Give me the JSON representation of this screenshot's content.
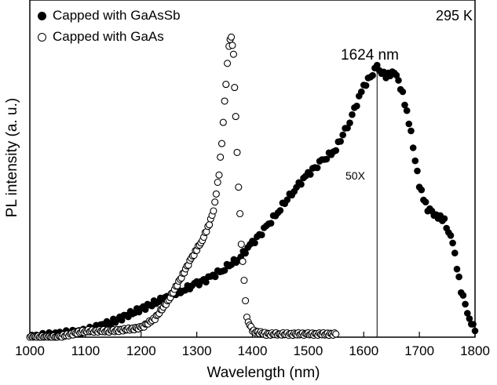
{
  "chart_data": {
    "type": "scatter",
    "title": "",
    "xlabel": "Wavelength (nm)",
    "ylabel": "PL intensity (a. u.)",
    "xlim": [
      1000,
      1800
    ],
    "ylim": [
      0,
      1
    ],
    "x_ticks": [
      1000,
      1100,
      1200,
      1300,
      1400,
      1500,
      1600,
      1700,
      1800
    ],
    "y_tick_labels": false,
    "grid": false,
    "legend_position": "top-left",
    "annotations": {
      "temperature": "295 K",
      "peak_label": "1624 nm",
      "peak_x": 1624,
      "scale_label": "50X"
    },
    "series": [
      {
        "name": "Capped with GaAsSb",
        "marker": "filled-circle",
        "x": [
          1000,
          1050,
          1100,
          1150,
          1200,
          1250,
          1275,
          1300,
          1325,
          1350,
          1375,
          1400,
          1425,
          1450,
          1475,
          1500,
          1525,
          1550,
          1575,
          1600,
          1624,
          1640,
          1655,
          1670,
          1685,
          1700,
          1715,
          1730,
          1745,
          1760,
          1775,
          1790,
          1800
        ],
        "y": [
          0.0,
          0.01,
          0.02,
          0.05,
          0.09,
          0.13,
          0.15,
          0.17,
          0.19,
          0.22,
          0.25,
          0.3,
          0.35,
          0.41,
          0.47,
          0.52,
          0.56,
          0.6,
          0.69,
          0.8,
          0.86,
          0.83,
          0.85,
          0.78,
          0.65,
          0.48,
          0.41,
          0.39,
          0.37,
          0.3,
          0.15,
          0.06,
          0.02
        ]
      },
      {
        "name": "Capped with GaAs",
        "marker": "open-circle",
        "x": [
          1000,
          1050,
          1100,
          1150,
          1200,
          1225,
          1250,
          1275,
          1290,
          1300,
          1310,
          1320,
          1330,
          1340,
          1345,
          1350,
          1355,
          1358,
          1362,
          1366,
          1370,
          1375,
          1380,
          1385,
          1390,
          1400,
          1425,
          1450,
          1500,
          1550
        ],
        "y": [
          0.0,
          0.0,
          0.02,
          0.02,
          0.03,
          0.06,
          0.12,
          0.2,
          0.25,
          0.28,
          0.31,
          0.35,
          0.4,
          0.52,
          0.62,
          0.75,
          0.87,
          0.93,
          0.96,
          0.9,
          0.7,
          0.48,
          0.3,
          0.18,
          0.06,
          0.02,
          0.01,
          0.01,
          0.01,
          0.01
        ]
      }
    ]
  }
}
